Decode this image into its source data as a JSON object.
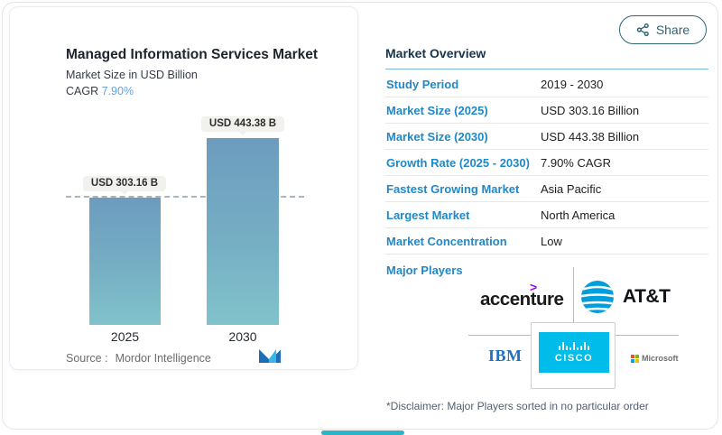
{
  "share": {
    "label": "Share",
    "icon": "share-nodes-icon"
  },
  "panel": {
    "title": "Managed Information Services Market",
    "subtitle": "Market Size in USD Billion",
    "cagr_label": "CAGR",
    "cagr_value": "7.90%",
    "source_label": "Source :",
    "source_name": "Mordor Intelligence",
    "logo": "mordor-intelligence-logo"
  },
  "chart_data": {
    "type": "bar",
    "categories": [
      "2025",
      "2030"
    ],
    "values": [
      303.16,
      443.38
    ],
    "value_labels": [
      "USD 303.16 B",
      "USD 443.38 B"
    ],
    "title": "Managed Information Services Market",
    "xlabel": "",
    "ylabel": "Market Size in USD Billion",
    "ylim": [
      0,
      480
    ],
    "grid": false,
    "legend": false,
    "reference_line": {
      "y": 303.16,
      "style": "dashed"
    },
    "bar_gradient": [
      "#6c9cbe",
      "#80c3cb"
    ]
  },
  "overview": {
    "heading": "Market Overview",
    "rows": [
      {
        "label": "Study Period",
        "value": "2019 - 2030"
      },
      {
        "label": "Market Size (2025)",
        "value": "USD 303.16 Billion"
      },
      {
        "label": "Market Size (2030)",
        "value": "USD 443.38 Billion"
      },
      {
        "label": "Growth Rate (2025 - 2030)",
        "value": "7.90% CAGR"
      },
      {
        "label": "Fastest Growing Market",
        "value": "Asia Pacific"
      },
      {
        "label": "Largest Market",
        "value": "North America"
      },
      {
        "label": "Market Concentration",
        "value": "Low"
      }
    ],
    "major_players_label": "Major Players",
    "players": [
      "accenture",
      "AT&T",
      "IBM",
      "CISCO",
      "Microsoft"
    ],
    "accenture_symbol": ">",
    "disclaimer": "*Disclaimer: Major Players sorted in no particular order"
  },
  "colors": {
    "label_blue": "#1f88c9",
    "heading_navy": "#17344e",
    "share_teal": "#2e6579",
    "cagr_blue": "#6aa2d8",
    "bar_top": "#6c9cbe",
    "bar_bottom": "#80c3cb",
    "cisco_cyan": "#00bceb",
    "ibm_blue": "#1f70c1",
    "accenture_purple": "#a100ff",
    "att_blue": "#009fdb",
    "bottom_scroll_teal": "#2ab4c5"
  }
}
